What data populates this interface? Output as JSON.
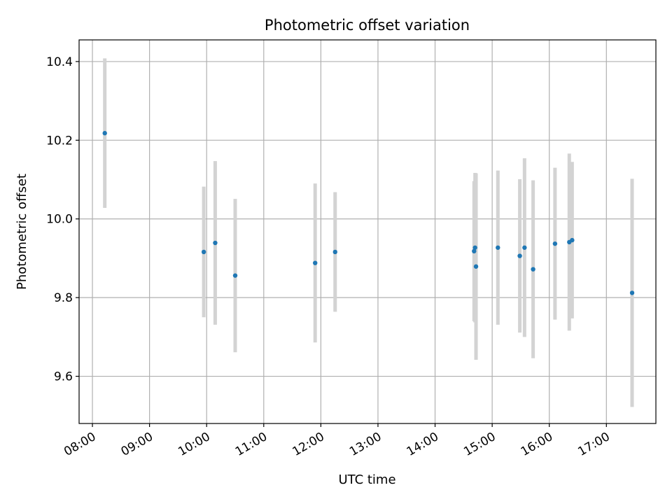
{
  "chart_data": {
    "type": "scatter",
    "title": "Photometric offset variation",
    "xlabel": "UTC time",
    "ylabel": "Photometric offset",
    "xlim": [
      "07:46",
      "17:52"
    ],
    "ylim": [
      9.48,
      10.455
    ],
    "x_ticks": [
      "08:00",
      "09:00",
      "10:00",
      "11:00",
      "12:00",
      "13:00",
      "14:00",
      "15:00",
      "16:00",
      "17:00"
    ],
    "y_ticks": [
      "9.6",
      "9.8",
      "10.0",
      "10.2",
      "10.4"
    ],
    "grid": true,
    "colors": {
      "marker": "#1f77b4",
      "errorbar": "#d3d3d3",
      "grid": "#b0b0b0"
    },
    "series": [
      {
        "points": [
          {
            "x": "08:13",
            "y": 10.218,
            "err": 0.19
          },
          {
            "x": "09:57",
            "y": 9.916,
            "err": 0.166
          },
          {
            "x": "10:09",
            "y": 9.939,
            "err": 0.208
          },
          {
            "x": "10:30",
            "y": 9.856,
            "err": 0.195
          },
          {
            "x": "11:54",
            "y": 9.888,
            "err": 0.202
          },
          {
            "x": "12:15",
            "y": 9.916,
            "err": 0.152
          },
          {
            "x": "14:41",
            "y": 9.918,
            "err": 0.178
          },
          {
            "x": "14:42",
            "y": 9.927,
            "err": 0.19
          },
          {
            "x": "14:43",
            "y": 9.879,
            "err": 0.237
          },
          {
            "x": "15:06",
            "y": 9.927,
            "err": 0.196
          },
          {
            "x": "15:29",
            "y": 9.906,
            "err": 0.195
          },
          {
            "x": "15:34",
            "y": 9.927,
            "err": 0.227
          },
          {
            "x": "15:43",
            "y": 9.872,
            "err": 0.226
          },
          {
            "x": "16:06",
            "y": 9.937,
            "err": 0.193
          },
          {
            "x": "16:21",
            "y": 9.941,
            "err": 0.225
          },
          {
            "x": "16:24",
            "y": 9.946,
            "err": 0.199
          },
          {
            "x": "17:27",
            "y": 9.812,
            "err": 0.29
          }
        ]
      }
    ]
  }
}
